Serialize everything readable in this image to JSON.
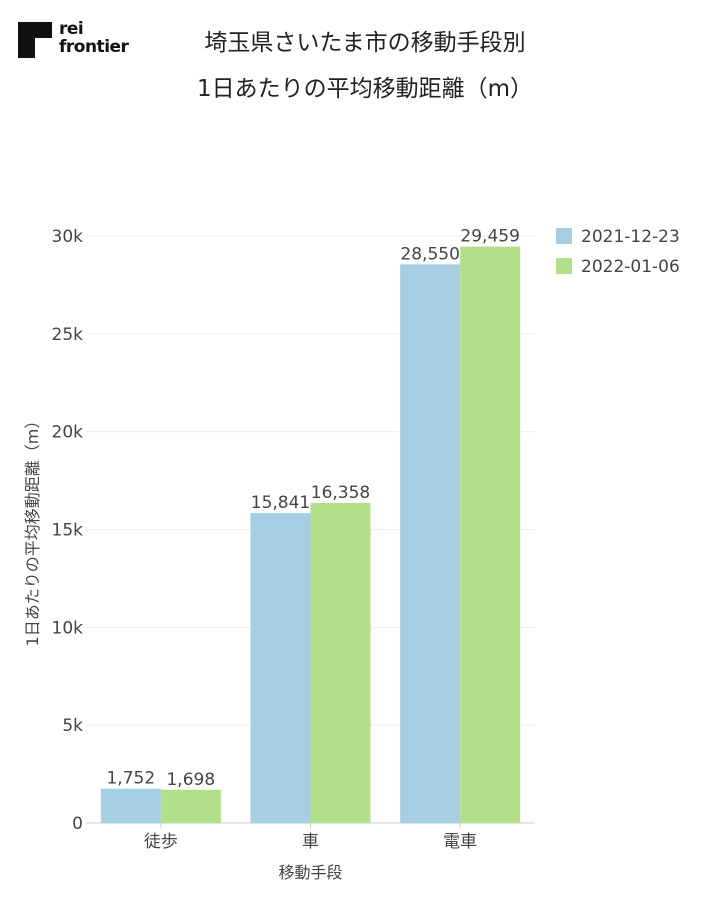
{
  "brand": {
    "line1": "rei",
    "line2": "frontier"
  },
  "colors": {
    "series1": "#a6cee3",
    "series2": "#b2df8a",
    "grid": "#eeeeee",
    "axis": "#cccccc"
  },
  "chart_data": {
    "type": "bar",
    "title": [
      "埼玉県さいたま市の移動手段別",
      "1日あたりの平均移動距離（m）"
    ],
    "categories": [
      "徒歩",
      "車",
      "電車"
    ],
    "series": [
      {
        "name": "2021-12-23",
        "values": [
          1752,
          15841,
          28550
        ],
        "labels": [
          "1,752",
          "15,841",
          "28,550"
        ]
      },
      {
        "name": "2022-01-06",
        "values": [
          1698,
          16358,
          29459
        ],
        "labels": [
          "1,698",
          "16,358",
          "29,459"
        ]
      }
    ],
    "xlabel": "移動手段",
    "ylabel": "1日あたりの平均移動距離（m）",
    "ylim": [
      0,
      30000
    ],
    "yticks": [
      0,
      5000,
      10000,
      15000,
      20000,
      25000,
      30000
    ],
    "ytick_labels": [
      "0",
      "5k",
      "10k",
      "15k",
      "20k",
      "25k",
      "30k"
    ],
    "legend_position": "top-right",
    "grid": true
  }
}
